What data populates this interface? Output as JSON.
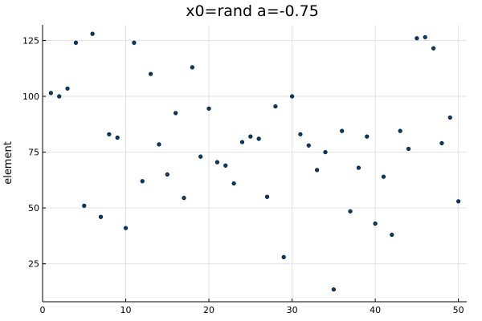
{
  "chart_data": {
    "type": "scatter",
    "title": "x0=rand a=-0.75",
    "xlabel": "",
    "ylabel": "element",
    "xlim": [
      0,
      51
    ],
    "ylim": [
      8,
      132
    ],
    "xticks": [
      0,
      10,
      20,
      30,
      40,
      50
    ],
    "yticks": [
      25,
      50,
      75,
      100,
      125
    ],
    "grid": true,
    "legend": "none",
    "marker_color": "#00407a",
    "series": [
      {
        "x": [
          1,
          2,
          3,
          4,
          5,
          6,
          7,
          8,
          9,
          10,
          11,
          12,
          13,
          14,
          15,
          16,
          17,
          18,
          19,
          20,
          21,
          22,
          23,
          24,
          25,
          26,
          27,
          28,
          29,
          30,
          31,
          32,
          33,
          34,
          35,
          36,
          37,
          38,
          39,
          40,
          41,
          42,
          43,
          44,
          45,
          46,
          47,
          48,
          49,
          50
        ],
        "values": [
          101.5,
          100,
          103.5,
          124,
          51,
          128,
          46,
          83,
          81.5,
          41,
          124,
          62,
          110,
          78.5,
          65,
          92.5,
          54.5,
          113,
          73,
          94.5,
          70.5,
          69,
          61,
          79.5,
          82,
          81,
          55,
          95.5,
          28,
          100,
          83,
          78,
          67,
          75,
          13.5,
          84.5,
          48.5,
          68,
          82,
          43,
          64,
          38,
          84.5,
          76.5,
          126,
          126.5,
          121.5,
          79,
          90.5,
          53
        ]
      }
    ]
  }
}
